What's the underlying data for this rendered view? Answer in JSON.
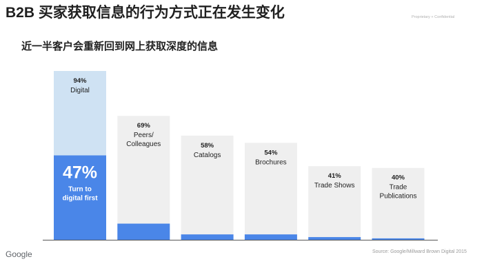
{
  "header": {
    "title": "B2B 买家获取信息的行为方式正在发生变化",
    "confidential": "Proprietary + Confidential",
    "subtitle": "近一半客户会重新回到网上获取深度的信息"
  },
  "footer": {
    "logo": "Google",
    "source": "Source: Google/Millward Brown Digital 2015"
  },
  "colors": {
    "bar_bg": "#efefef",
    "first_bar_bg": "#cfe2f3",
    "accent": "#4a86e8"
  },
  "chart_data": {
    "type": "bar",
    "title": "",
    "xlabel": "",
    "ylabel": "",
    "ylim": [
      0,
      100
    ],
    "categories": [
      {
        "percent": "94%",
        "label": [
          "Digital"
        ],
        "value": 94,
        "digital_first": 47,
        "digital_first_percent": "47%",
        "digital_first_label": [
          "Turn to",
          "digital first"
        ]
      },
      {
        "percent": "69%",
        "label": [
          "Peers/",
          "Colleagues"
        ],
        "value": 69,
        "digital_first": 9
      },
      {
        "percent": "58%",
        "label": [
          "Catalogs"
        ],
        "value": 58,
        "digital_first": 3
      },
      {
        "percent": "54%",
        "label": [
          "Brochures"
        ],
        "value": 54,
        "digital_first": 3
      },
      {
        "percent": "41%",
        "label": [
          "Trade Shows"
        ],
        "value": 41,
        "digital_first": 1.5
      },
      {
        "percent": "40%",
        "label": [
          "Trade",
          "Publications"
        ],
        "value": 40,
        "digital_first": 0.8
      }
    ]
  }
}
